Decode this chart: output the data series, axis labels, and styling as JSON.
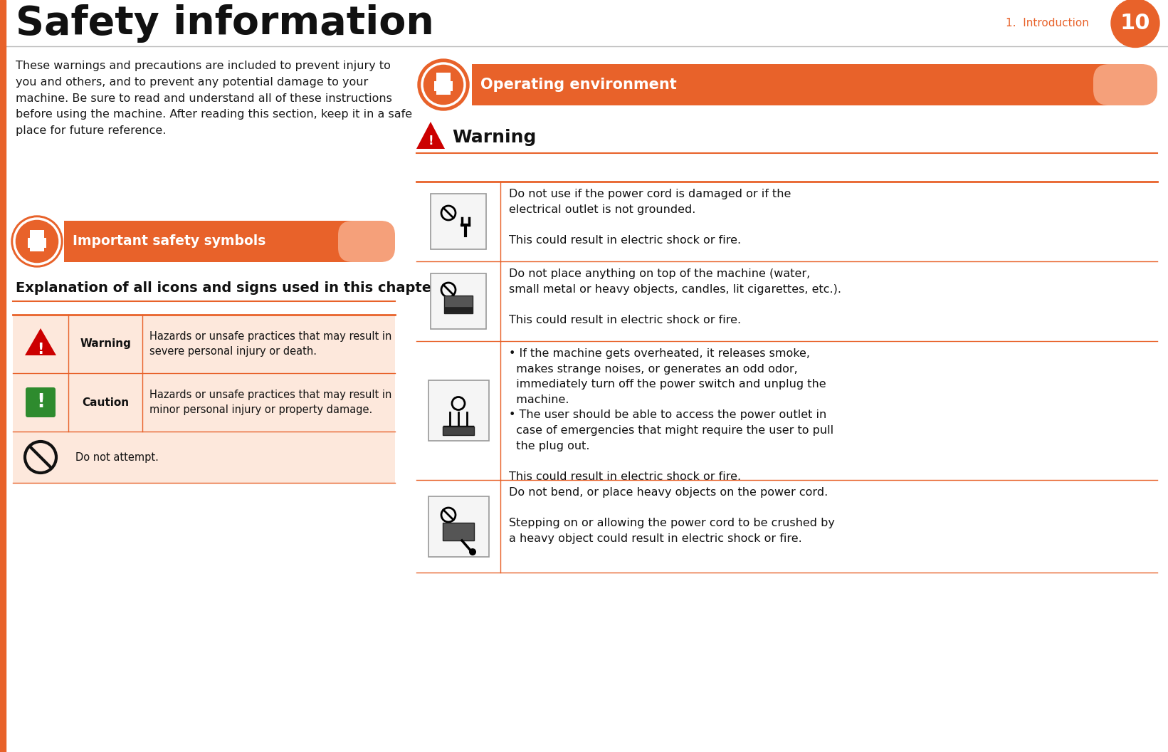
{
  "bg_color": "#ffffff",
  "orange": "#E8622A",
  "orange_light": "#F5A07A",
  "orange_pale": "#FDE8DC",
  "red": "#CC0000",
  "green": "#2E8B2E",
  "page_title": "Safety information",
  "section_num": "1.  Introduction",
  "page_num": "10",
  "intro_text": "These warnings and precautions are included to prevent injury to\nyou and others, and to prevent any potential damage to your\nmachine. Be sure to read and understand all of these instructions\nbefore using the machine. After reading this section, keep it in a safe\nplace for future reference.",
  "left_section_title": "Important safety symbols",
  "left_sub_title": "Explanation of all icons and signs used in this chapter",
  "table_rows": [
    {
      "label": "Warning",
      "desc": "Hazards or unsafe practices that may result in\nsevere personal injury or death.",
      "icon": "warning"
    },
    {
      "label": "Caution",
      "desc": "Hazards or unsafe practices that may result in\nminor personal injury or property damage.",
      "icon": "caution"
    },
    {
      "label": "",
      "desc": "Do not attempt.",
      "icon": "no"
    }
  ],
  "right_section_title": "Operating environment",
  "warning_title": "Warning",
  "right_rows": [
    {
      "desc": "Do not use if the power cord is damaged or if the\nelectrical outlet is not grounded.\n\nThis could result in electric shock or fire.",
      "icon": "plug"
    },
    {
      "desc": "Do not place anything on top of the machine (water,\nsmall metal or heavy objects, candles, lit cigarettes, etc.).\n\nThis could result in electric shock or fire.",
      "icon": "machine_top"
    },
    {
      "desc": "• If the machine gets overheated, it releases smoke,\n  makes strange noises, or generates an odd odor,\n  immediately turn off the power switch and unplug the\n  machine.\n• The user should be able to access the power outlet in\n  case of emergencies that might require the user to pull\n  the plug out.\n\nThis could result in electric shock or fire.",
      "icon": "heat"
    },
    {
      "desc": "Do not bend, or place heavy objects on the power cord.\n\nStepping on or allowing the power cord to be crushed by\na heavy object could result in electric shock or fire.",
      "icon": "cord"
    }
  ]
}
